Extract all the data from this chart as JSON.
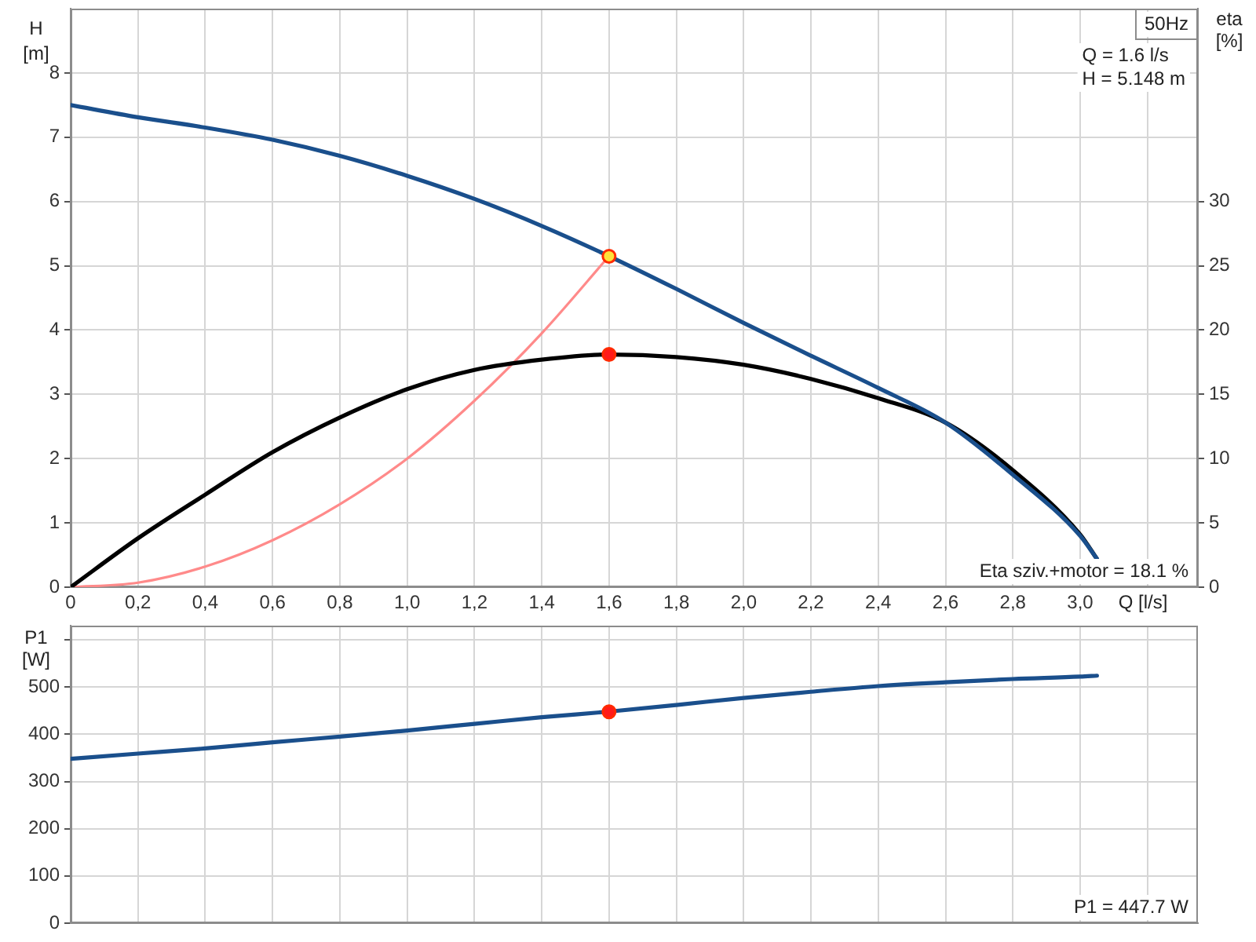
{
  "chart_data": [
    {
      "type": "line",
      "ylabel": "H [m]",
      "y2label": "eta [%]",
      "xlabel": "Q [l/s]",
      "annotations": [
        "50Hz",
        "Q = 1.6 l/s",
        "H = 5.148 m",
        "Eta sziv.+motor = 18.1 %"
      ],
      "x": [
        0,
        0.2,
        0.4,
        0.6,
        0.8,
        1.0,
        1.2,
        1.4,
        1.6,
        1.8,
        2.0,
        2.2,
        2.4,
        2.6,
        2.8,
        3.0,
        3.05
      ],
      "series": [
        {
          "color": "#1a4f8c",
          "values": [
            7.5,
            7.31,
            7.15,
            6.96,
            6.71,
            6.4,
            6.04,
            5.62,
            5.15,
            4.64,
            4.11,
            3.6,
            3.1,
            2.56,
            1.75,
            0.8,
            0.44
          ]
        },
        {
          "color": "#000000",
          "axis": "y2",
          "values": [
            0,
            3.8,
            7.2,
            10.5,
            13.2,
            15.4,
            16.9,
            17.7,
            18.1,
            17.9,
            17.3,
            16.2,
            14.7,
            12.8,
            9.1,
            4.1,
            2.2
          ]
        },
        {
          "color": "#ff8a8a",
          "x": [
            0,
            0.2,
            0.4,
            0.6,
            0.8,
            1.0,
            1.2,
            1.4,
            1.6
          ],
          "values": [
            0,
            0.07,
            0.32,
            0.73,
            1.29,
            2.0,
            2.9,
            3.95,
            5.15
          ]
        },
        {
          "type": "scatter",
          "marker": "circle",
          "color": "#ffe23a",
          "x": [
            1.6
          ],
          "values": [
            5.148
          ]
        },
        {
          "type": "scatter",
          "marker": "circle",
          "color": "#ff1a1a",
          "axis": "y2",
          "x": [
            1.6
          ],
          "values": [
            18.1
          ]
        }
      ],
      "xlim": [
        0,
        3.35
      ],
      "xticks": [
        0,
        {
          "value": 0.2,
          "label": "0,2"
        },
        {
          "value": 0.4,
          "label": "0,4"
        },
        {
          "value": 0.6,
          "label": "0,6"
        },
        {
          "value": 0.8,
          "label": "0,8"
        },
        {
          "value": 1.0,
          "label": "1,0"
        },
        {
          "value": 1.2,
          "label": "1,2"
        },
        {
          "value": 1.4,
          "label": "1,4"
        },
        {
          "value": 1.6,
          "label": "1,6"
        },
        {
          "value": 1.8,
          "label": "1,8"
        },
        {
          "value": 2.0,
          "label": "2,0"
        },
        {
          "value": 2.2,
          "label": "2,2"
        },
        {
          "value": 2.4,
          "label": "2,4"
        },
        {
          "value": 2.6,
          "label": "2,6"
        },
        {
          "value": 2.8,
          "label": "2,8"
        },
        {
          "value": 3.0,
          "label": "3,0"
        },
        {
          "value": 3.2,
          "label": null
        }
      ],
      "ylim": [
        0,
        9
      ],
      "yticks": [
        0,
        1,
        2,
        3,
        4,
        5,
        6,
        7,
        8
      ],
      "y2lim": [
        0,
        45
      ],
      "y2ticks": [
        0,
        5,
        10,
        15,
        20,
        25,
        30
      ],
      "grid": true,
      "marker": "none"
    },
    {
      "type": "line",
      "ylabel": "P1 [W]",
      "annotations": [
        "P1 = 447.7 W"
      ],
      "x": [
        0,
        0.2,
        0.4,
        0.6,
        0.8,
        1.0,
        1.2,
        1.4,
        1.6,
        1.8,
        2.0,
        2.2,
        2.4,
        2.6,
        2.8,
        3.0,
        3.05
      ],
      "series": [
        {
          "color": "#1a4f8c",
          "values": [
            348,
            359,
            370,
            383,
            395,
            408,
            422,
            436,
            448,
            462,
            477,
            490,
            502,
            510,
            517,
            522,
            524
          ]
        },
        {
          "type": "scatter",
          "marker": "circle",
          "color": "#ff1a1a",
          "x": [
            1.6
          ],
          "values": [
            447.7
          ]
        }
      ],
      "xlim": [
        0,
        3.35
      ],
      "xticks": [
        0,
        0.2,
        0.4,
        0.6,
        0.8,
        1.0,
        1.2,
        1.4,
        1.6,
        1.8,
        2.0,
        2.2,
        2.4,
        2.6,
        2.8,
        3.0,
        3.2
      ],
      "ylim": [
        0,
        630
      ],
      "yticks": [
        0,
        100,
        200,
        300,
        400,
        500,
        {
          "value": 600,
          "label": null
        }
      ],
      "grid": true,
      "tick_labels": "y",
      "marker": "none"
    }
  ]
}
